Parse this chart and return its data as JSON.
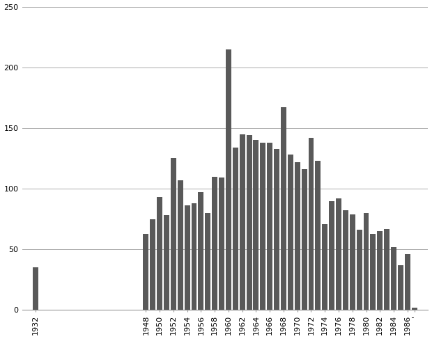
{
  "years": [
    1932,
    1948,
    1949,
    1950,
    1951,
    1952,
    1953,
    1954,
    1955,
    1956,
    1957,
    1958,
    1959,
    1960,
    1961,
    1962,
    1963,
    1964,
    1965,
    1966,
    1967,
    1968,
    1969,
    1970,
    1971,
    1972,
    1973,
    1974,
    1975,
    1976,
    1977,
    1978,
    1979,
    1980,
    1981,
    1982,
    1983,
    1984,
    1985,
    1986,
    1987
  ],
  "values": [
    35,
    63,
    75,
    93,
    78,
    125,
    107,
    86,
    88,
    97,
    80,
    110,
    109,
    215,
    134,
    145,
    144,
    140,
    138,
    138,
    133,
    167,
    128,
    122,
    116,
    142,
    123,
    71,
    90,
    92,
    82,
    79,
    66,
    80,
    63,
    65,
    67,
    52,
    37,
    46,
    2
  ],
  "label_years": [
    1932,
    1948,
    1950,
    1952,
    1954,
    1956,
    1958,
    1960,
    1962,
    1964,
    1966,
    1968,
    1970,
    1972,
    1974,
    1976,
    1978,
    1980,
    1982,
    1984,
    1986
  ],
  "bar_color": "#595959",
  "background_color": "#ffffff",
  "ylim": [
    0,
    250
  ],
  "yticks": [
    0,
    50,
    100,
    150,
    200,
    250
  ],
  "grid_color": "#aaaaaa",
  "tick_label_fontsize": 8
}
